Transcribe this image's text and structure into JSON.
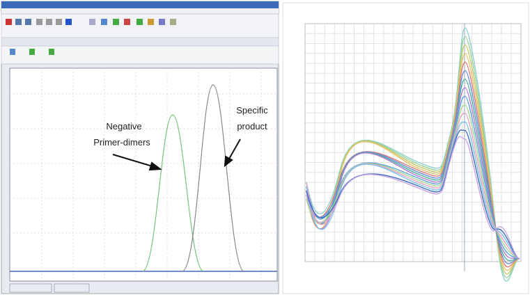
{
  "annotations": {
    "negative": {
      "lines": [
        "Negative",
        "Primer-dimers"
      ]
    },
    "specific": {
      "lines": [
        "Specific",
        "product"
      ]
    }
  }
}
